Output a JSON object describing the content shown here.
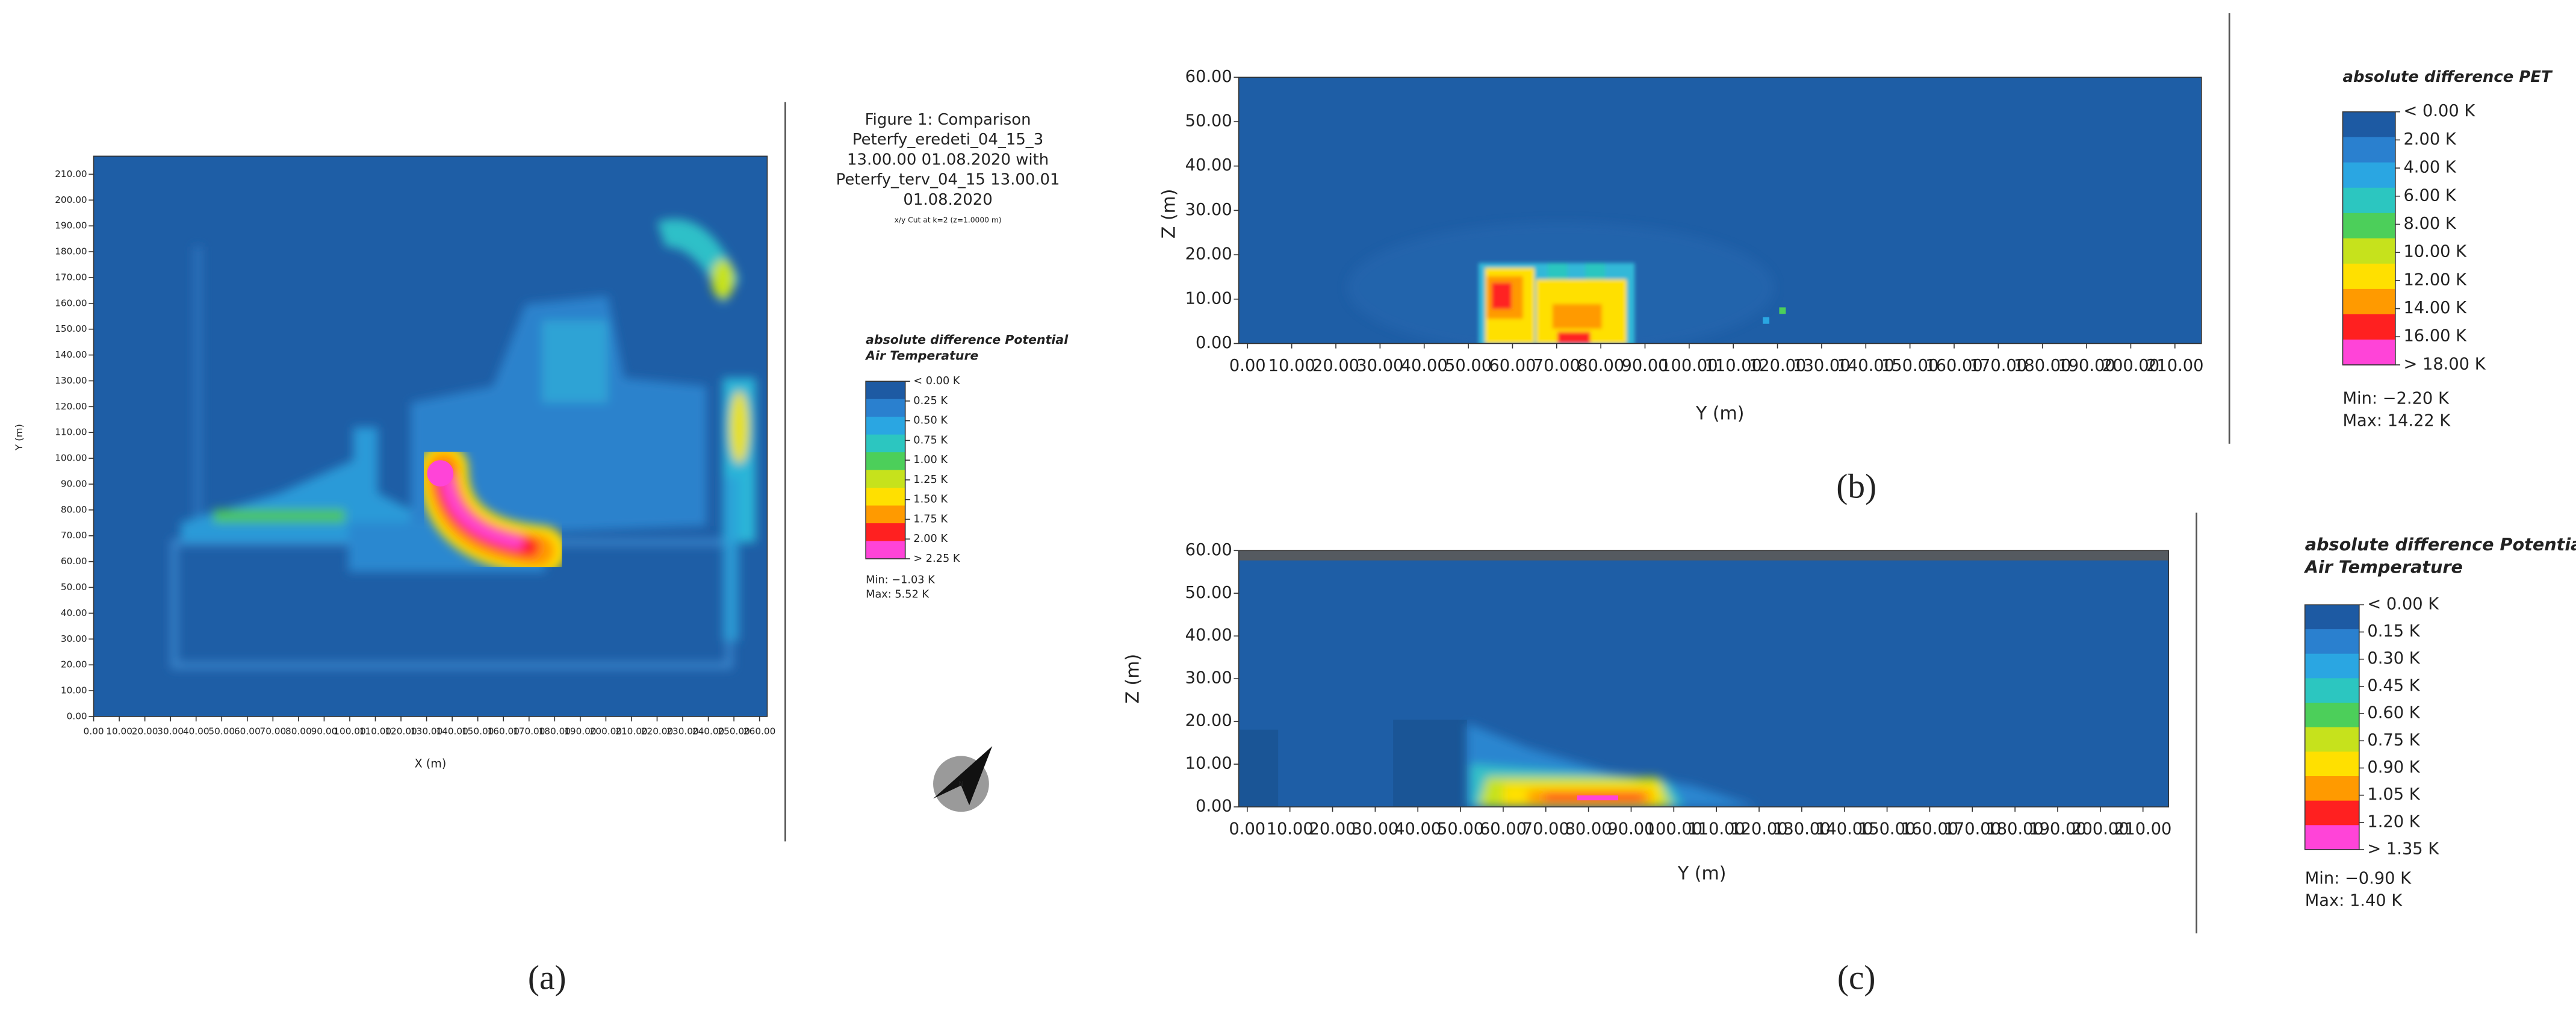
{
  "chart_data": [
    {
      "type": "heatmap",
      "title_lines": [
        "Figure 1: Comparison",
        "Peterfy_eredeti_04_15_3",
        "13.00.00 01.08.2020 with",
        "Peterfy_terv_04_15 13.00.01",
        "01.08.2020"
      ],
      "subtitle": "x/y Cut at k=2 (z=1.0000 m)",
      "xlabel": "X (m)",
      "ylabel": "Y (m)",
      "xlim": [
        0,
        263
      ],
      "ylim": [
        0,
        217
      ],
      "xticks": [
        {
          "value": 0,
          "label": "0.00"
        },
        {
          "value": 10,
          "label": "10.00"
        },
        {
          "value": 20,
          "label": "20.00"
        },
        {
          "value": 30,
          "label": "30.00"
        },
        {
          "value": 40,
          "label": "40.00"
        },
        {
          "value": 50,
          "label": "50.00"
        },
        {
          "value": 60,
          "label": "60.00"
        },
        {
          "value": 70,
          "label": "70.00"
        },
        {
          "value": 80,
          "label": "80.00"
        },
        {
          "value": 90,
          "label": "90.00"
        },
        {
          "value": 100,
          "label": "100.00"
        },
        {
          "value": 110,
          "label": "110.00"
        },
        {
          "value": 120,
          "label": "120.00"
        },
        {
          "value": 130,
          "label": "130.00"
        },
        {
          "value": 140,
          "label": "140.00"
        },
        {
          "value": 150,
          "label": "150.00"
        },
        {
          "value": 160,
          "label": "160.00"
        },
        {
          "value": 170,
          "label": "170.00"
        },
        {
          "value": 180,
          "label": "180.00"
        },
        {
          "value": 190,
          "label": "190.00"
        },
        {
          "value": 200,
          "label": "200.00"
        },
        {
          "value": 210,
          "label": "210.00"
        },
        {
          "value": 220,
          "label": "220.00"
        },
        {
          "value": 230,
          "label": "230.00"
        },
        {
          "value": 240,
          "label": "240.00"
        },
        {
          "value": 250,
          "label": "250.00"
        },
        {
          "value": 260,
          "label": "260.00"
        }
      ],
      "yticks": [
        {
          "value": 0,
          "label": "0.00"
        },
        {
          "value": 10,
          "label": "10.00"
        },
        {
          "value": 20,
          "label": "20.00"
        },
        {
          "value": 30,
          "label": "30.00"
        },
        {
          "value": 40,
          "label": "40.00"
        },
        {
          "value": 50,
          "label": "50.00"
        },
        {
          "value": 60,
          "label": "60.00"
        },
        {
          "value": 70,
          "label": "70.00"
        },
        {
          "value": 80,
          "label": "80.00"
        },
        {
          "value": 90,
          "label": "90.00"
        },
        {
          "value": 100,
          "label": "100.00"
        },
        {
          "value": 110,
          "label": "110.00"
        },
        {
          "value": 120,
          "label": "120.00"
        },
        {
          "value": 130,
          "label": "130.00"
        },
        {
          "value": 140,
          "label": "140.00"
        },
        {
          "value": 150,
          "label": "150.00"
        },
        {
          "value": 160,
          "label": "160.00"
        },
        {
          "value": 170,
          "label": "170.00"
        },
        {
          "value": 180,
          "label": "180.00"
        },
        {
          "value": 190,
          "label": "190.00"
        },
        {
          "value": 200,
          "label": "200.00"
        },
        {
          "value": 210,
          "label": "210.00"
        }
      ],
      "legend": {
        "title": [
          "absolute difference Potential",
          "Air Temperature"
        ],
        "labels": [
          "< 0.00 K",
          "0.25 K",
          "0.50 K",
          "0.75 K",
          "1.00 K",
          "1.25 K",
          "1.50 K",
          "1.75 K",
          "2.00 K",
          "> 2.25 K"
        ],
        "colors": [
          "#1d5aa3",
          "#2a80cf",
          "#2aa6e2",
          "#2cc6c0",
          "#4ccf5a",
          "#c6e21c",
          "#ffe000",
          "#ff9a00",
          "#ff2020",
          "#ff44d8"
        ]
      },
      "min_label": "Min: −1.03 K",
      "max_label": "Max: 5.52 K",
      "caption": "(a)"
    },
    {
      "type": "heatmap",
      "xlabel": "Y (m)",
      "ylabel": "Z (m)",
      "xlim": [
        -2,
        216
      ],
      "ylim": [
        0,
        60
      ],
      "xticks": [
        {
          "value": 0,
          "label": "0.00"
        },
        {
          "value": 10,
          "label": "10.00"
        },
        {
          "value": 20,
          "label": "20.00"
        },
        {
          "value": 30,
          "label": "30.00"
        },
        {
          "value": 40,
          "label": "40.00"
        },
        {
          "value": 50,
          "label": "50.00"
        },
        {
          "value": 60,
          "label": "60.00"
        },
        {
          "value": 70,
          "label": "70.00"
        },
        {
          "value": 80,
          "label": "80.00"
        },
        {
          "value": 90,
          "label": "90.00"
        },
        {
          "value": 100,
          "label": "100.00"
        },
        {
          "value": 110,
          "label": "110.00"
        },
        {
          "value": 120,
          "label": "120.00"
        },
        {
          "value": 130,
          "label": "130.00"
        },
        {
          "value": 140,
          "label": "140.00"
        },
        {
          "value": 150,
          "label": "150.00"
        },
        {
          "value": 160,
          "label": "160.00"
        },
        {
          "value": 170,
          "label": "170.00"
        },
        {
          "value": 180,
          "label": "180.00"
        },
        {
          "value": 190,
          "label": "190.00"
        },
        {
          "value": 200,
          "label": "200.00"
        },
        {
          "value": 210,
          "label": "210.00"
        }
      ],
      "yticks": [
        {
          "value": 0,
          "label": "0.00"
        },
        {
          "value": 10,
          "label": "10.00"
        },
        {
          "value": 20,
          "label": "20.00"
        },
        {
          "value": 30,
          "label": "30.00"
        },
        {
          "value": 40,
          "label": "40.00"
        },
        {
          "value": 50,
          "label": "50.00"
        },
        {
          "value": 60,
          "label": "60.00"
        }
      ],
      "legend": {
        "title": [
          "absolute difference PET"
        ],
        "labels": [
          "< 0.00 K",
          "2.00 K",
          "4.00 K",
          "6.00 K",
          "8.00 K",
          "10.00 K",
          "12.00 K",
          "14.00 K",
          "16.00 K",
          "> 18.00 K"
        ],
        "colors": [
          "#1d5aa3",
          "#2a80cf",
          "#2aa6e2",
          "#2cc6c0",
          "#4ccf5a",
          "#c6e21c",
          "#ffe000",
          "#ff9a00",
          "#ff2020",
          "#ff44d8"
        ]
      },
      "min_label": "Min: −2.20 K",
      "max_label": "Max: 14.22 K",
      "caption": "(b)"
    },
    {
      "type": "heatmap",
      "xlabel": "Y (m)",
      "ylabel": "Z (m)",
      "xlim": [
        -2,
        216
      ],
      "ylim": [
        0,
        60
      ],
      "xticks": [
        {
          "value": 0,
          "label": "0.00"
        },
        {
          "value": 10,
          "label": "10.00"
        },
        {
          "value": 20,
          "label": "20.00"
        },
        {
          "value": 30,
          "label": "30.00"
        },
        {
          "value": 40,
          "label": "40.00"
        },
        {
          "value": 50,
          "label": "50.00"
        },
        {
          "value": 60,
          "label": "60.00"
        },
        {
          "value": 70,
          "label": "70.00"
        },
        {
          "value": 80,
          "label": "80.00"
        },
        {
          "value": 90,
          "label": "90.00"
        },
        {
          "value": 100,
          "label": "100.00"
        },
        {
          "value": 110,
          "label": "110.00"
        },
        {
          "value": 120,
          "label": "120.00"
        },
        {
          "value": 130,
          "label": "130.00"
        },
        {
          "value": 140,
          "label": "140.00"
        },
        {
          "value": 150,
          "label": "150.00"
        },
        {
          "value": 160,
          "label": "160.00"
        },
        {
          "value": 170,
          "label": "170.00"
        },
        {
          "value": 180,
          "label": "180.00"
        },
        {
          "value": 190,
          "label": "190.00"
        },
        {
          "value": 200,
          "label": "200.00"
        },
        {
          "value": 210,
          "label": "210.00"
        }
      ],
      "yticks": [
        {
          "value": 0,
          "label": "0.00"
        },
        {
          "value": 10,
          "label": "10.00"
        },
        {
          "value": 20,
          "label": "20.00"
        },
        {
          "value": 30,
          "label": "30.00"
        },
        {
          "value": 40,
          "label": "40.00"
        },
        {
          "value": 50,
          "label": "50.00"
        },
        {
          "value": 60,
          "label": "60.00"
        }
      ],
      "legend": {
        "title": [
          "absolute difference Potential",
          "Air Temperature"
        ],
        "labels": [
          "< 0.00 K",
          "0.15 K",
          "0.30 K",
          "0.45 K",
          "0.60 K",
          "0.75 K",
          "0.90 K",
          "1.05 K",
          "1.20 K",
          "> 1.35 K"
        ],
        "colors": [
          "#1d5aa3",
          "#2a80cf",
          "#2aa6e2",
          "#2cc6c0",
          "#4ccf5a",
          "#c6e21c",
          "#ffe000",
          "#ff9a00",
          "#ff2020",
          "#ff44d8"
        ]
      },
      "min_label": "Min: −0.90 K",
      "max_label": "Max: 1.40 K",
      "caption": "(c)"
    }
  ]
}
